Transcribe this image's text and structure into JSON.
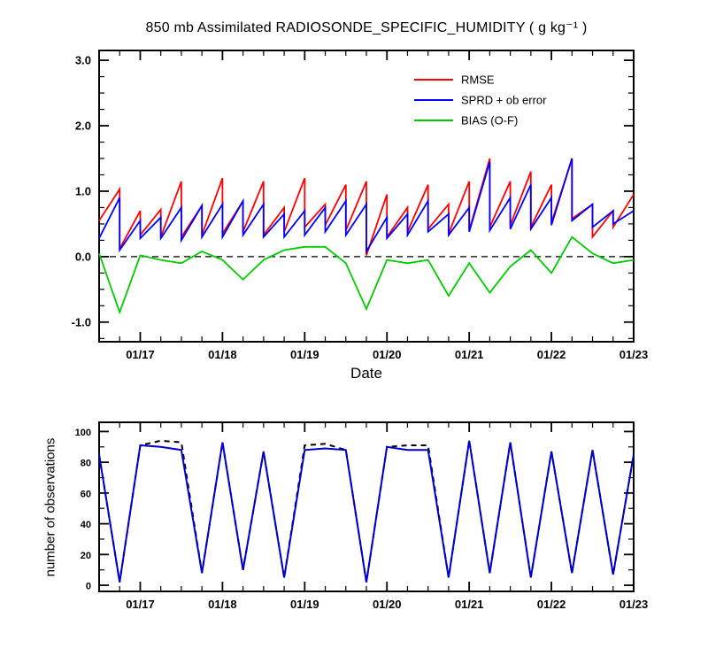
{
  "chart_data": [
    {
      "type": "line",
      "title": "850 mb Assimilated RADIOSONDE_SPECIFIC_HUMIDITY ( g kg⁻¹ )",
      "xlabel": "Date",
      "ylabel": "",
      "xlim": [
        16.5,
        23
      ],
      "ylim": [
        -1.3,
        3.15
      ],
      "xticks": [
        17,
        18,
        19,
        20,
        21,
        22,
        23
      ],
      "xtick_labels": [
        "01/17",
        "01/18",
        "01/19",
        "01/20",
        "01/21",
        "01/22",
        "01/23"
      ],
      "xminor": 0.25,
      "yticks": [
        -1,
        0,
        1,
        2,
        3
      ],
      "ytick_labels": [
        "-1.0",
        "0.0",
        "1.0",
        "2.0",
        "3.0"
      ],
      "yminor": 0.25,
      "zero_line_dashed": true,
      "legend": {
        "position": "upper-right-inside",
        "labels": [
          "RMSE",
          "SPRD + ob error",
          "BIAS (O-F)"
        ]
      },
      "x": [
        16.5,
        16.75,
        17,
        17.25,
        17.5,
        17.75,
        18,
        18.25,
        18.5,
        18.75,
        19,
        19.25,
        19.5,
        19.75,
        20,
        20.25,
        20.5,
        20.75,
        21,
        21.25,
        21.5,
        21.75,
        22,
        22.25,
        22.5,
        22.75,
        23
      ],
      "series": [
        {
          "name": "RMSE",
          "color": "#ff0000",
          "points": [
            [
              16.5,
              0.55
            ],
            [
              16.75,
              1.03
            ],
            [
              16.75,
              0.12
            ],
            [
              17.0,
              0.7
            ],
            [
              17.0,
              0.33
            ],
            [
              17.25,
              0.72
            ],
            [
              17.25,
              0.3
            ],
            [
              17.5,
              1.15
            ],
            [
              17.5,
              0.3
            ],
            [
              17.75,
              0.78
            ],
            [
              17.75,
              0.33
            ],
            [
              18.0,
              1.2
            ],
            [
              18.0,
              0.35
            ],
            [
              18.25,
              0.85
            ],
            [
              18.25,
              0.38
            ],
            [
              18.5,
              1.15
            ],
            [
              18.5,
              0.33
            ],
            [
              18.75,
              0.75
            ],
            [
              18.75,
              0.38
            ],
            [
              19.0,
              1.2
            ],
            [
              19.0,
              0.45
            ],
            [
              19.25,
              0.8
            ],
            [
              19.25,
              0.48
            ],
            [
              19.5,
              1.1
            ],
            [
              19.5,
              0.4
            ],
            [
              19.75,
              1.15
            ],
            [
              19.75,
              0.02
            ],
            [
              20.0,
              0.95
            ],
            [
              20.0,
              0.3
            ],
            [
              20.25,
              0.75
            ],
            [
              20.25,
              0.38
            ],
            [
              20.5,
              1.1
            ],
            [
              20.5,
              0.42
            ],
            [
              20.75,
              0.8
            ],
            [
              20.75,
              0.35
            ],
            [
              21.0,
              1.15
            ],
            [
              21.0,
              0.4
            ],
            [
              21.25,
              1.5
            ],
            [
              21.25,
              0.45
            ],
            [
              21.5,
              1.15
            ],
            [
              21.5,
              0.48
            ],
            [
              21.75,
              1.3
            ],
            [
              21.75,
              0.45
            ],
            [
              22.0,
              1.1
            ],
            [
              22.0,
              0.52
            ],
            [
              22.25,
              1.5
            ],
            [
              22.25,
              0.58
            ],
            [
              22.5,
              0.8
            ],
            [
              22.5,
              0.3
            ],
            [
              22.75,
              0.7
            ],
            [
              22.75,
              0.45
            ],
            [
              23.0,
              0.95
            ]
          ]
        },
        {
          "name": "SPRD + ob error",
          "color": "#0000ff",
          "points": [
            [
              16.5,
              0.28
            ],
            [
              16.75,
              0.9
            ],
            [
              16.75,
              0.1
            ],
            [
              17.0,
              0.55
            ],
            [
              17.0,
              0.28
            ],
            [
              17.25,
              0.6
            ],
            [
              17.25,
              0.28
            ],
            [
              17.5,
              0.75
            ],
            [
              17.5,
              0.25
            ],
            [
              17.75,
              0.78
            ],
            [
              17.75,
              0.3
            ],
            [
              18.0,
              0.8
            ],
            [
              18.0,
              0.3
            ],
            [
              18.25,
              0.85
            ],
            [
              18.25,
              0.33
            ],
            [
              18.5,
              0.8
            ],
            [
              18.5,
              0.3
            ],
            [
              18.75,
              0.65
            ],
            [
              18.75,
              0.3
            ],
            [
              19.0,
              0.7
            ],
            [
              19.0,
              0.33
            ],
            [
              19.25,
              0.75
            ],
            [
              19.25,
              0.38
            ],
            [
              19.5,
              0.85
            ],
            [
              19.5,
              0.33
            ],
            [
              19.75,
              0.8
            ],
            [
              19.75,
              0.08
            ],
            [
              20.0,
              0.6
            ],
            [
              20.0,
              0.28
            ],
            [
              20.25,
              0.65
            ],
            [
              20.25,
              0.33
            ],
            [
              20.5,
              0.85
            ],
            [
              20.5,
              0.38
            ],
            [
              20.75,
              0.65
            ],
            [
              20.75,
              0.33
            ],
            [
              21.0,
              0.75
            ],
            [
              21.0,
              0.38
            ],
            [
              21.25,
              1.45
            ],
            [
              21.25,
              0.4
            ],
            [
              21.5,
              0.9
            ],
            [
              21.5,
              0.42
            ],
            [
              21.75,
              1.1
            ],
            [
              21.75,
              0.42
            ],
            [
              22.0,
              0.9
            ],
            [
              22.0,
              0.48
            ],
            [
              22.25,
              1.5
            ],
            [
              22.25,
              0.55
            ],
            [
              22.5,
              0.8
            ],
            [
              22.5,
              0.45
            ],
            [
              22.75,
              0.7
            ],
            [
              22.75,
              0.5
            ],
            [
              23.0,
              0.7
            ]
          ]
        },
        {
          "name": "BIAS (O-F)",
          "color": "#00cc00",
          "values": [
            0.05,
            -0.85,
            0.02,
            -0.05,
            -0.1,
            0.08,
            -0.05,
            -0.35,
            -0.05,
            0.1,
            0.15,
            0.15,
            -0.1,
            -0.8,
            -0.05,
            -0.1,
            -0.05,
            -0.6,
            -0.1,
            -0.55,
            -0.15,
            0.1,
            -0.25,
            0.3,
            0.05,
            -0.1,
            -0.05
          ]
        }
      ]
    },
    {
      "type": "line",
      "title": "",
      "xlabel": "",
      "ylabel": "number of observations",
      "xlim": [
        16.5,
        23
      ],
      "ylim": [
        -4,
        106
      ],
      "xticks": [
        17,
        18,
        19,
        20,
        21,
        22,
        23
      ],
      "xtick_labels": [
        "01/17",
        "01/18",
        "01/19",
        "01/20",
        "01/21",
        "01/22",
        "01/23"
      ],
      "xminor": 0.25,
      "yticks": [
        0,
        20,
        40,
        60,
        80,
        100
      ],
      "ytick_labels": [
        "0",
        "20",
        "40",
        "60",
        "80",
        "100"
      ],
      "yminor": 10,
      "zero_line_dashed": false,
      "x": [
        16.5,
        16.75,
        17,
        17.25,
        17.5,
        17.75,
        18,
        18.25,
        18.5,
        18.75,
        19,
        19.25,
        19.5,
        19.75,
        20,
        20.25,
        20.5,
        20.75,
        21,
        21.25,
        21.5,
        21.75,
        22,
        22.25,
        22.5,
        22.75,
        23
      ],
      "series": [
        {
          "name": "black-dashed",
          "color": "#000000",
          "dash": "6 5",
          "values": [
            85,
            2,
            91,
            94,
            93,
            8,
            93,
            10,
            87,
            5,
            91,
            92,
            88,
            2,
            90,
            91,
            91,
            5,
            94,
            8,
            93,
            5,
            87,
            8,
            88,
            7,
            85
          ]
        },
        {
          "name": "blue-solid",
          "color": "#0000cd",
          "values": [
            85,
            2,
            91,
            90,
            88,
            8,
            93,
            10,
            87,
            5,
            88,
            89,
            88,
            2,
            90,
            88,
            88,
            5,
            94,
            8,
            93,
            5,
            87,
            8,
            88,
            7,
            85
          ]
        }
      ]
    }
  ]
}
